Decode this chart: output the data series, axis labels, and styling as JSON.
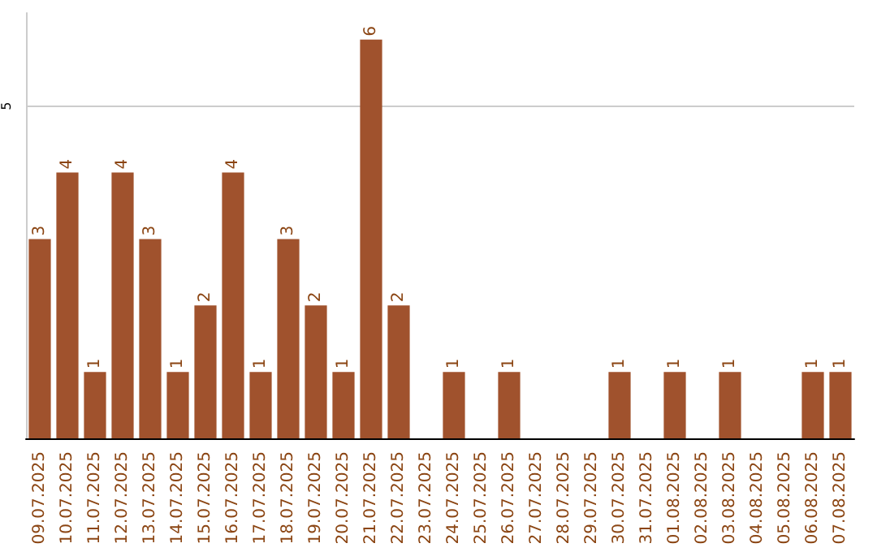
{
  "chart_data": {
    "type": "bar",
    "categories": [
      "09.07.2025",
      "10.07.2025",
      "11.07.2025",
      "12.07.2025",
      "13.07.2025",
      "14.07.2025",
      "15.07.2025",
      "16.07.2025",
      "17.07.2025",
      "18.07.2025",
      "19.07.2025",
      "20.07.2025",
      "21.07.2025",
      "22.07.2025",
      "23.07.2025",
      "24.07.2025",
      "25.07.2025",
      "26.07.2025",
      "27.07.2025",
      "28.07.2025",
      "29.07.2025",
      "30.07.2025",
      "31.07.2025",
      "01.08.2025",
      "02.08.2025",
      "03.08.2025",
      "04.08.2025",
      "05.08.2025",
      "06.08.2025",
      "07.08.2025"
    ],
    "values": [
      3,
      4,
      1,
      4,
      3,
      1,
      2,
      4,
      1,
      3,
      2,
      1,
      6,
      2,
      0,
      1,
      0,
      1,
      0,
      0,
      0,
      1,
      0,
      1,
      0,
      1,
      0,
      0,
      1,
      1
    ],
    "value_labels": [
      "3",
      "4",
      "1",
      "4",
      "3",
      "1",
      "2",
      "4",
      "1",
      "3",
      "2",
      "1",
      "6",
      "2",
      null,
      "1",
      null,
      "1",
      null,
      null,
      null,
      "1",
      null,
      "1",
      null,
      "1",
      null,
      null,
      "1",
      "1"
    ],
    "color": "#a0522d",
    "ylim": [
      0,
      6.4
    ],
    "yticks": [
      5
    ],
    "grid": "y"
  }
}
